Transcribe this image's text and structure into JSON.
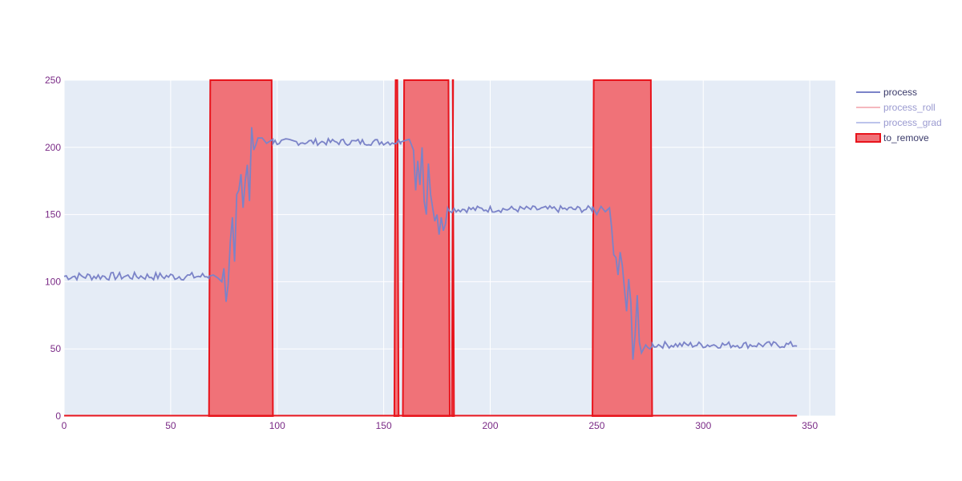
{
  "colors": {
    "plot_bg": "#e5ecf6",
    "grid": "#ffffff",
    "process": "#7b83c8",
    "process_roll": "#f2a0a8",
    "process_grad": "#a7b0e6",
    "to_remove_line": "#e8141c",
    "to_remove_fill": "#f07278",
    "tick": "#7a2a86"
  },
  "chart_data": {
    "type": "line",
    "xlim": [
      0,
      362
    ],
    "ylim": [
      0,
      250
    ],
    "xticks": [
      0,
      50,
      100,
      150,
      200,
      250,
      300,
      350
    ],
    "yticks": [
      0,
      50,
      100,
      150,
      200,
      250
    ],
    "legend_position": "top-right",
    "legend": [
      {
        "name": "process",
        "style": "line",
        "faded": false
      },
      {
        "name": "process_roll",
        "style": "line",
        "faded": true
      },
      {
        "name": "process_grad",
        "style": "line",
        "faded": true
      },
      {
        "name": "to_remove",
        "style": "area",
        "faded": false
      }
    ],
    "to_remove_regions": [
      [
        68,
        98
      ],
      [
        155,
        157
      ],
      [
        159,
        181
      ],
      [
        182,
        183
      ],
      [
        248,
        276
      ]
    ],
    "to_remove_value": 250,
    "x_end": 344,
    "process": {
      "segments": [
        {
          "x0": 0,
          "x1": 68,
          "level": 104,
          "noise": 3
        },
        {
          "x0": 98,
          "x1": 158,
          "level": 204,
          "noise": 2.5
        },
        {
          "x0": 181,
          "x1": 248,
          "level": 154,
          "noise": 2.5
        },
        {
          "x0": 276,
          "x1": 344,
          "level": 53,
          "noise": 2.5
        }
      ],
      "transitions": [
        {
          "x": [
            68,
            70,
            72,
            74,
            75,
            76,
            77,
            78,
            79,
            80,
            81,
            82,
            83,
            84,
            85,
            86,
            87,
            88,
            89,
            90,
            91,
            93,
            95,
            97,
            98
          ],
          "y": [
            104,
            105,
            103,
            100,
            110,
            85,
            98,
            130,
            148,
            115,
            165,
            168,
            180,
            155,
            175,
            187,
            160,
            215,
            198,
            202,
            207,
            207,
            203,
            205,
            206
          ]
        },
        {
          "x": [
            158,
            160,
            162,
            164,
            165,
            166,
            167,
            168,
            169,
            170,
            171,
            172,
            173,
            174,
            175,
            176,
            177,
            178,
            179,
            180,
            181
          ],
          "y": [
            204,
            205,
            206,
            198,
            168,
            190,
            172,
            200,
            160,
            150,
            188,
            165,
            155,
            145,
            150,
            135,
            148,
            138,
            143,
            155,
            152
          ]
        },
        {
          "x": [
            248,
            250,
            252,
            254,
            256,
            257,
            258,
            259,
            260,
            261,
            262,
            263,
            264,
            265,
            266,
            267,
            268,
            269,
            270,
            271,
            272,
            273,
            274,
            275,
            276
          ],
          "y": [
            156,
            150,
            156,
            152,
            155,
            140,
            120,
            118,
            105,
            122,
            112,
            95,
            78,
            102,
            85,
            42,
            60,
            90,
            55,
            47,
            50,
            53,
            51,
            50,
            52
          ]
        }
      ]
    }
  }
}
